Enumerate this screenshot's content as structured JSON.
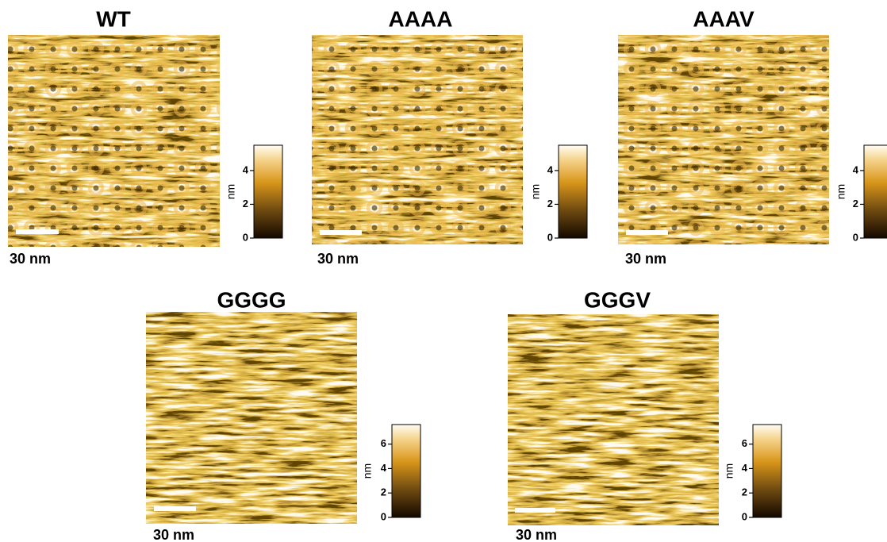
{
  "panels": [
    {
      "title": "WT",
      "scale_bar_label": "30 nm",
      "colorbar": {
        "label": "nm",
        "lim": [
          0,
          5.5
        ],
        "ticks": [
          0,
          2,
          4
        ]
      }
    },
    {
      "title": "AAAA",
      "scale_bar_label": "30 nm",
      "colorbar": {
        "label": "nm",
        "lim": [
          0,
          5.5
        ],
        "ticks": [
          0,
          2,
          4
        ]
      }
    },
    {
      "title": "AAAV",
      "scale_bar_label": "30 nm",
      "colorbar": {
        "label": "nm",
        "lim": [
          0,
          5.5
        ],
        "ticks": [
          0,
          2,
          4
        ]
      }
    },
    {
      "title": "GGGG",
      "scale_bar_label": "30 nm",
      "colorbar": {
        "label": "nm",
        "lim": [
          0,
          7.6
        ],
        "ticks": [
          0,
          2,
          4,
          6
        ]
      }
    },
    {
      "title": "GGGV",
      "scale_bar_label": "30 nm",
      "colorbar": {
        "label": "nm",
        "lim": [
          0,
          7.6
        ],
        "ticks": [
          0,
          2,
          4,
          6
        ]
      }
    }
  ]
}
